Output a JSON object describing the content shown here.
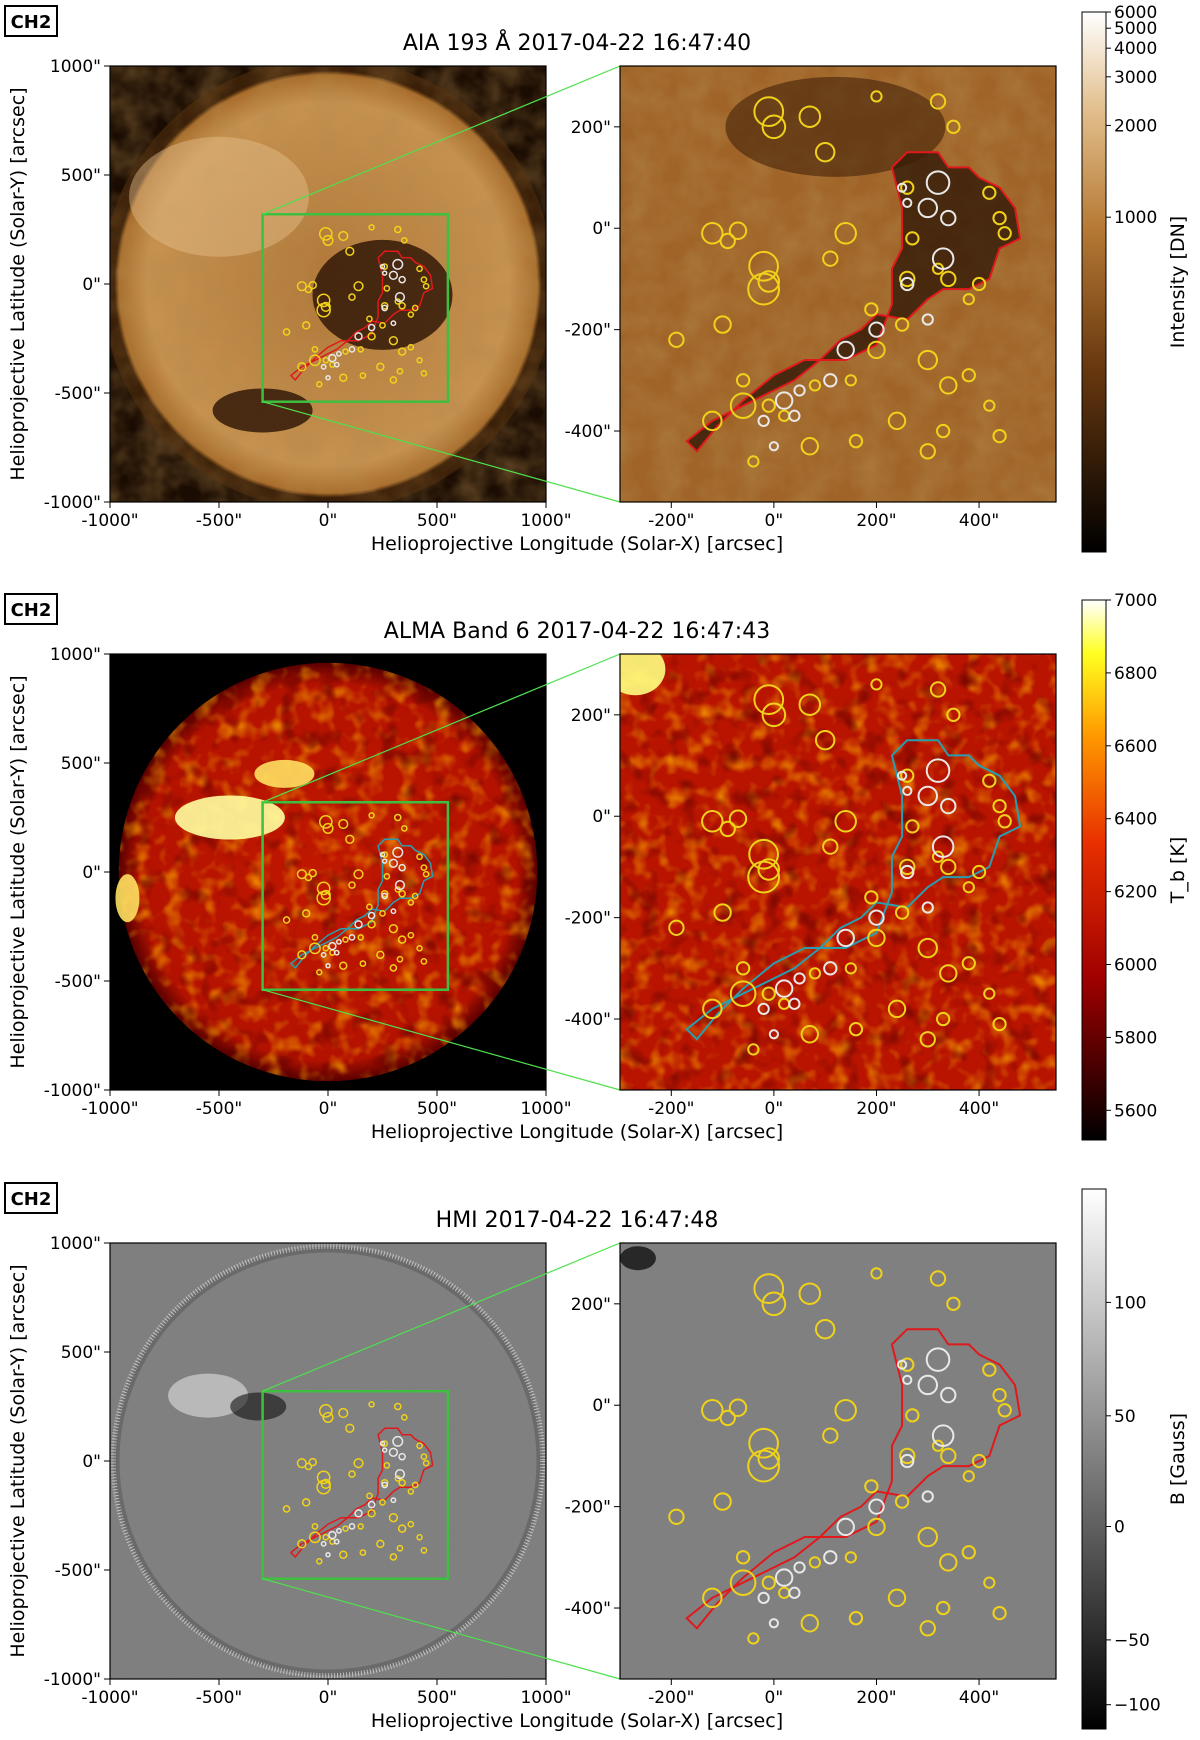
{
  "panels": [
    {
      "key": "aia",
      "tag": "CH2",
      "title": "AIA 193 Å 2017-04-22 16:47:40",
      "colorbar_label": "Intensity [DN]",
      "colorbar_ticks": [
        "6000",
        "5000",
        "4000",
        "3000",
        "2000",
        "1000"
      ],
      "colormap": "sdoaia193",
      "contour_color": "#e0191c",
      "x_label": "Helioprojective Longitude (Solar-X) [arcsec]",
      "y_label": "Helioprojective Latitude (Solar-Y) [arcsec]"
    },
    {
      "key": "alma",
      "tag": "CH2",
      "title": "ALMA Band 6 2017-04-22 16:47:43",
      "colorbar_label": "T_b [K]",
      "colorbar_ticks": [
        "7000",
        "6800",
        "6600",
        "6400",
        "6200",
        "6000",
        "5800",
        "5600"
      ],
      "colormap": "hot",
      "contour_color": "#2b9db0",
      "x_label": "Helioprojective Longitude (Solar-X) [arcsec]",
      "y_label": "Helioprojective Latitude (Solar-Y) [arcsec]"
    },
    {
      "key": "hmi",
      "tag": "CH2",
      "title": "HMI 2017-04-22 16:47:48",
      "colorbar_label": "B [Gauss]",
      "colorbar_ticks": [
        "100",
        "50",
        "0",
        "−50",
        "−100"
      ],
      "colormap": "gray",
      "contour_color": "#e0191c",
      "x_label": "Helioprojective Longitude (Solar-X) [arcsec]",
      "y_label": "Helioprojective Latitude (Solar-Y) [arcsec]"
    }
  ],
  "full_disk_ticks": {
    "x": [
      "-1000\"",
      "-500\"",
      "0\"",
      "500\"",
      "1000\""
    ],
    "y": [
      "1000\"",
      "500\"",
      "0\"",
      "-500\"",
      "-1000\""
    ]
  },
  "zoom_ticks": {
    "x": [
      "-200\"",
      "0\"",
      "200\"",
      "400\""
    ],
    "y": [
      "200\"",
      "0\"",
      "-200\"",
      "-400\""
    ]
  },
  "colors": {
    "box": "#3fbf3f",
    "zoom_lines": "#4ee04e",
    "yellow_circles": "#f0d21a",
    "white_circles": "#e8e8e8"
  },
  "circles_yellow": [
    [
      -10,
      230,
      28
    ],
    [
      0,
      200,
      22
    ],
    [
      -70,
      -5,
      16
    ],
    [
      -90,
      -25,
      14
    ],
    [
      -20,
      -75,
      28
    ],
    [
      -10,
      -105,
      20
    ],
    [
      70,
      220,
      20
    ],
    [
      100,
      150,
      18
    ],
    [
      -120,
      -10,
      20
    ],
    [
      -20,
      -120,
      30
    ],
    [
      -100,
      -190,
      16
    ],
    [
      -190,
      -220,
      14
    ],
    [
      140,
      -10,
      20
    ],
    [
      110,
      -60,
      14
    ],
    [
      -60,
      -300,
      12
    ],
    [
      190,
      -160,
      12
    ],
    [
      -60,
      -350,
      24
    ],
    [
      20,
      -370,
      10
    ],
    [
      80,
      -310,
      10
    ],
    [
      150,
      -300,
      10
    ],
    [
      270,
      -20,
      12
    ],
    [
      260,
      -100,
      14
    ],
    [
      320,
      -80,
      10
    ],
    [
      340,
      -100,
      14
    ],
    [
      380,
      -140,
      10
    ],
    [
      400,
      -110,
      12
    ],
    [
      250,
      -190,
      12
    ],
    [
      200,
      -240,
      16
    ],
    [
      300,
      -260,
      18
    ],
    [
      340,
      -310,
      16
    ],
    [
      380,
      -290,
      12
    ],
    [
      300,
      -440,
      14
    ],
    [
      330,
      -400,
      12
    ],
    [
      420,
      -350,
      10
    ],
    [
      440,
      -410,
      12
    ],
    [
      70,
      -430,
      16
    ],
    [
      160,
      -420,
      12
    ],
    [
      240,
      -380,
      16
    ],
    [
      -40,
      -460,
      10
    ],
    [
      200,
      260,
      10
    ],
    [
      320,
      250,
      14
    ],
    [
      350,
      200,
      12
    ],
    [
      260,
      80,
      12
    ],
    [
      420,
      70,
      12
    ],
    [
      440,
      20,
      12
    ],
    [
      450,
      -10,
      12
    ],
    [
      -10,
      -350,
      12
    ],
    [
      -120,
      -380,
      18
    ]
  ],
  "circles_white": [
    [
      250,
      80,
      8
    ],
    [
      260,
      50,
      8
    ],
    [
      320,
      90,
      22
    ],
    [
      300,
      40,
      18
    ],
    [
      340,
      20,
      14
    ],
    [
      330,
      -60,
      20
    ],
    [
      260,
      -110,
      12
    ],
    [
      200,
      -200,
      14
    ],
    [
      140,
      -240,
      16
    ],
    [
      110,
      -300,
      12
    ],
    [
      50,
      -320,
      10
    ],
    [
      20,
      -340,
      16
    ],
    [
      40,
      -370,
      10
    ],
    [
      -20,
      -380,
      10
    ],
    [
      0,
      -430,
      8
    ],
    [
      300,
      -180,
      10
    ]
  ],
  "contour_path": [
    [
      -150,
      -440
    ],
    [
      -110,
      -390
    ],
    [
      -60,
      -340
    ],
    [
      0,
      -290
    ],
    [
      60,
      -260
    ],
    [
      140,
      -260
    ],
    [
      200,
      -230
    ],
    [
      230,
      -150
    ],
    [
      230,
      -80
    ],
    [
      250,
      -40
    ],
    [
      250,
      40
    ],
    [
      230,
      120
    ],
    [
      260,
      150
    ],
    [
      320,
      150
    ],
    [
      340,
      120
    ],
    [
      380,
      120
    ],
    [
      400,
      100
    ],
    [
      440,
      80
    ],
    [
      470,
      40
    ],
    [
      480,
      -20
    ],
    [
      440,
      -40
    ],
    [
      420,
      -100
    ],
    [
      380,
      -120
    ],
    [
      330,
      -120
    ],
    [
      300,
      -140
    ],
    [
      260,
      -180
    ],
    [
      200,
      -170
    ],
    [
      170,
      -200
    ],
    [
      130,
      -220
    ],
    [
      90,
      -260
    ],
    [
      40,
      -300
    ],
    [
      -20,
      -330
    ],
    [
      -80,
      -360
    ],
    [
      -120,
      -380
    ],
    [
      -170,
      -420
    ],
    [
      -150,
      -440
    ]
  ]
}
